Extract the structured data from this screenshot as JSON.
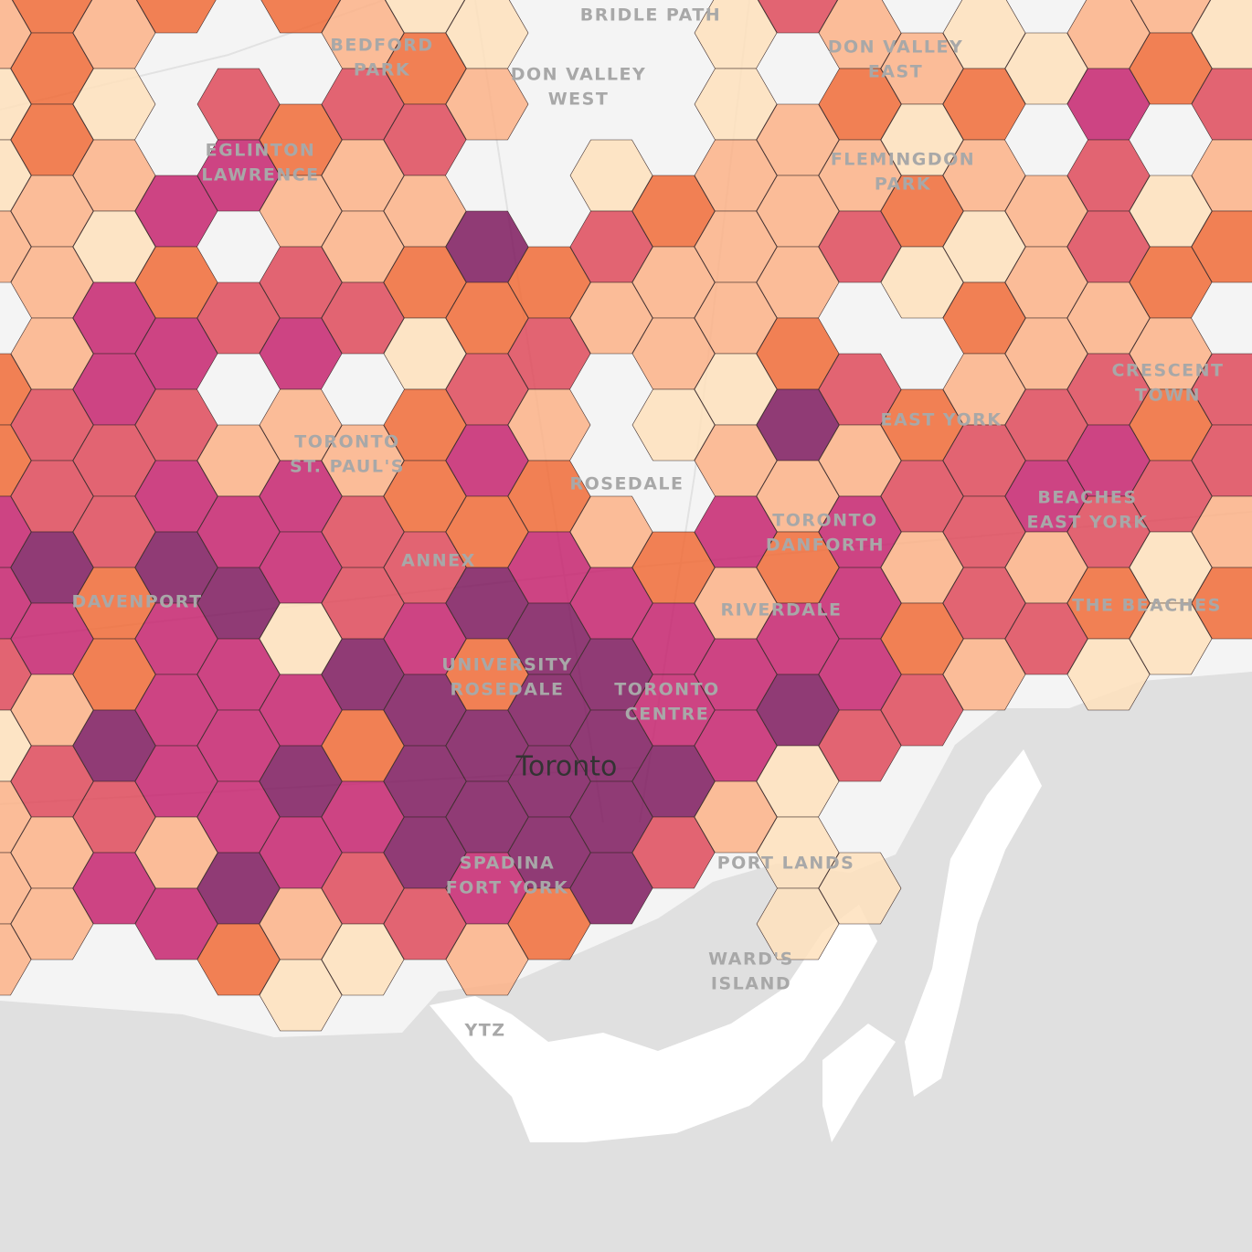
{
  "map": {
    "places": [
      {
        "lines": [
          "BRIDLE PATH"
        ]
      },
      {
        "lines": [
          "BEDFORD",
          "PARK"
        ]
      },
      {
        "lines": [
          "DON VALLEY",
          "WEST"
        ]
      },
      {
        "lines": [
          "DON VALLEY",
          "EAST"
        ]
      },
      {
        "lines": [
          "EGLINTON",
          "LAWRENCE"
        ]
      },
      {
        "lines": [
          "FLEMINGDON",
          "PARK"
        ]
      },
      {
        "lines": [
          "CRESCENT",
          "TOWN"
        ]
      },
      {
        "lines": [
          "EAST YORK"
        ]
      },
      {
        "lines": [
          "TORONTO",
          "ST. PAUL'S"
        ]
      },
      {
        "lines": [
          "ROSEDALE"
        ]
      },
      {
        "lines": [
          "BEACHES",
          "EAST YORK"
        ]
      },
      {
        "lines": [
          "TORONTO",
          "DANFORTH"
        ]
      },
      {
        "lines": [
          "ANNEX"
        ]
      },
      {
        "lines": [
          "DAVENPORT"
        ]
      },
      {
        "lines": [
          "RIVERDALE"
        ]
      },
      {
        "lines": [
          "THE BEACHES"
        ]
      },
      {
        "lines": [
          "UNIVERSITY",
          "ROSEDALE"
        ]
      },
      {
        "lines": [
          "TORONTO",
          "CENTRE"
        ]
      },
      {
        "lines": [
          "Toronto"
        ]
      },
      {
        "lines": [
          "SPADINA",
          "FORT YORK"
        ]
      },
      {
        "lines": [
          "PORT LANDS"
        ]
      },
      {
        "lines": [
          "WARD'S",
          "ISLAND"
        ]
      },
      {
        "lines": [
          "YTZ"
        ]
      }
    ],
    "hexbins": {
      "colors": [
        "#fee0bc",
        "#fbb187",
        "#f06b37",
        "#de4a5a",
        "#c5256f",
        "#7e1a5e"
      ],
      "columns": [
        [
          1,
          0,
          0,
          1,
          null,
          2,
          2,
          4,
          4,
          3,
          0,
          1,
          1,
          1
        ],
        [
          2,
          2,
          2,
          1,
          1,
          1,
          3,
          3,
          5,
          4,
          1,
          3,
          1,
          1,
          null
        ],
        [
          1,
          0,
          1,
          0,
          4,
          4,
          3,
          3,
          2,
          2,
          5,
          3,
          4,
          null
        ],
        [
          2,
          null,
          null,
          4,
          2,
          4,
          3,
          4,
          5,
          4,
          4,
          4,
          1,
          4,
          null
        ],
        [
          null,
          3,
          4,
          null,
          3,
          null,
          1,
          4,
          5,
          4,
          4,
          4,
          5,
          2
        ],
        [
          2,
          null,
          2,
          1,
          3,
          4,
          1,
          4,
          4,
          0,
          4,
          5,
          4,
          1,
          0
        ],
        [
          1,
          3,
          1,
          1,
          3,
          null,
          1,
          3,
          3,
          5,
          2,
          4,
          3,
          0
        ],
        [
          0,
          2,
          3,
          1,
          2,
          0,
          2,
          2,
          3,
          4,
          5,
          5,
          5,
          3,
          null
        ],
        [
          0,
          1,
          null,
          5,
          2,
          3,
          4,
          2,
          5,
          2,
          5,
          5,
          4,
          1
        ],
        [
          null,
          null,
          null,
          null,
          2,
          3,
          1,
          2,
          4,
          5,
          5,
          5,
          5,
          2,
          null
        ],
        [
          null,
          null,
          0,
          3,
          1,
          null,
          null,
          1,
          4,
          5,
          5,
          5,
          5,
          null
        ],
        [
          null,
          null,
          null,
          2,
          1,
          1,
          0,
          null,
          2,
          4,
          4,
          5,
          3,
          null
        ],
        [
          0,
          0,
          1,
          1,
          1,
          0,
          1,
          4,
          1,
          4,
          4,
          1,
          null
        ],
        [
          3,
          null,
          1,
          1,
          1,
          2,
          5,
          1,
          2,
          4,
          5,
          0,
          0,
          0
        ],
        [
          1,
          2,
          1,
          3,
          null,
          3,
          1,
          4,
          4,
          4,
          3,
          null,
          0
        ],
        [
          null,
          1,
          0,
          2,
          0,
          null,
          2,
          3,
          1,
          2,
          3
        ],
        [
          0,
          2,
          1,
          0,
          2,
          1,
          3,
          3,
          3,
          1
        ],
        [
          null,
          0,
          null,
          1,
          1,
          1,
          3,
          4,
          1,
          3,
          null
        ],
        [
          1,
          4,
          3,
          3,
          1,
          3,
          4,
          3,
          2,
          0
        ],
        [
          1,
          2,
          null,
          0,
          2,
          1,
          2,
          3,
          0,
          0
        ],
        [
          0,
          3,
          1,
          2,
          null,
          3,
          3,
          1,
          2
        ]
      ]
    }
  }
}
